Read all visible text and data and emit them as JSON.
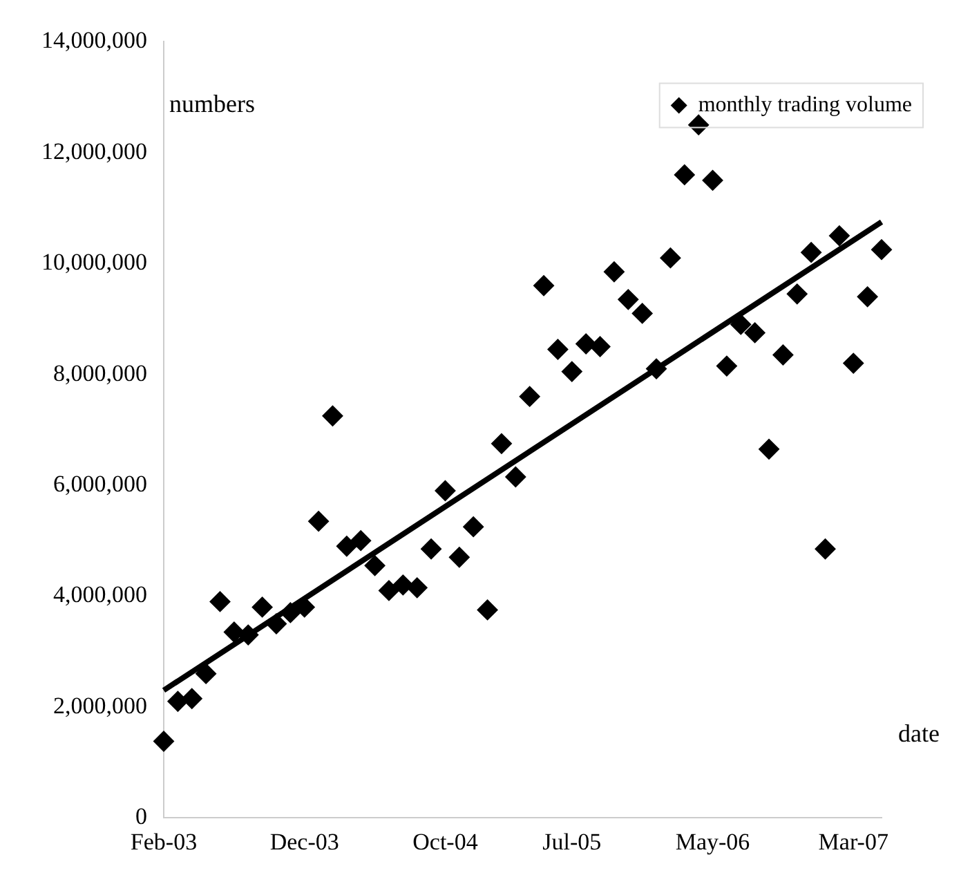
{
  "chart_data": {
    "type": "scatter",
    "xlabel": "date",
    "ylabel": "numbers",
    "categories": [
      "Feb-03",
      null,
      null,
      null,
      null,
      null,
      null,
      null,
      null,
      null,
      "Dec-03",
      null,
      null,
      null,
      null,
      null,
      null,
      null,
      null,
      null,
      "Oct-04",
      null,
      null,
      null,
      null,
      null,
      null,
      null,
      null,
      "Jul-05",
      null,
      null,
      null,
      null,
      null,
      null,
      null,
      null,
      null,
      "May-06",
      null,
      null,
      null,
      null,
      null,
      null,
      null,
      null,
      null,
      "Mar-07",
      null,
      null
    ],
    "series": [
      {
        "name": "monthly trading volume",
        "color": "#000000",
        "marker": "diamond",
        "values": [
          1380000,
          2100000,
          2150000,
          2600000,
          3900000,
          3350000,
          3300000,
          3800000,
          3500000,
          3700000,
          3800000,
          5350000,
          7250000,
          4900000,
          5000000,
          4550000,
          4100000,
          4200000,
          4150000,
          4850000,
          5900000,
          4700000,
          5250000,
          3750000,
          6750000,
          6150000,
          7600000,
          9600000,
          8450000,
          8050000,
          8550000,
          8500000,
          9850000,
          9350000,
          9100000,
          8100000,
          10100000,
          11600000,
          12500000,
          11500000,
          8150000,
          8900000,
          8750000,
          6650000,
          8350000,
          9450000,
          10200000,
          4850000,
          10500000,
          8200000,
          9400000,
          10250000
        ]
      },
      {
        "type": "line",
        "color": "#000000",
        "line_style": "solid",
        "values": [
          2300000,
          null,
          null,
          null,
          null,
          null,
          null,
          null,
          null,
          null,
          null,
          null,
          null,
          null,
          null,
          null,
          null,
          null,
          null,
          null,
          null,
          null,
          null,
          null,
          null,
          null,
          null,
          null,
          null,
          null,
          null,
          null,
          null,
          null,
          null,
          null,
          null,
          null,
          null,
          null,
          null,
          null,
          null,
          null,
          null,
          null,
          null,
          null,
          null,
          null,
          null,
          10750000
        ]
      }
    ],
    "ylim": [
      0,
      14000000
    ],
    "yticks": [
      0,
      {
        "value": 2000000,
        "label": "2,000,000"
      },
      {
        "value": 4000000,
        "label": "4,000,000"
      },
      {
        "value": 6000000,
        "label": "6,000,000"
      },
      {
        "value": 8000000,
        "label": "8,000,000"
      },
      {
        "value": 10000000,
        "label": "10,000,000"
      },
      {
        "value": 12000000,
        "label": "12,000,000"
      },
      {
        "value": 14000000,
        "label": "14,000,000"
      }
    ],
    "grid": false,
    "legend": "top right"
  }
}
